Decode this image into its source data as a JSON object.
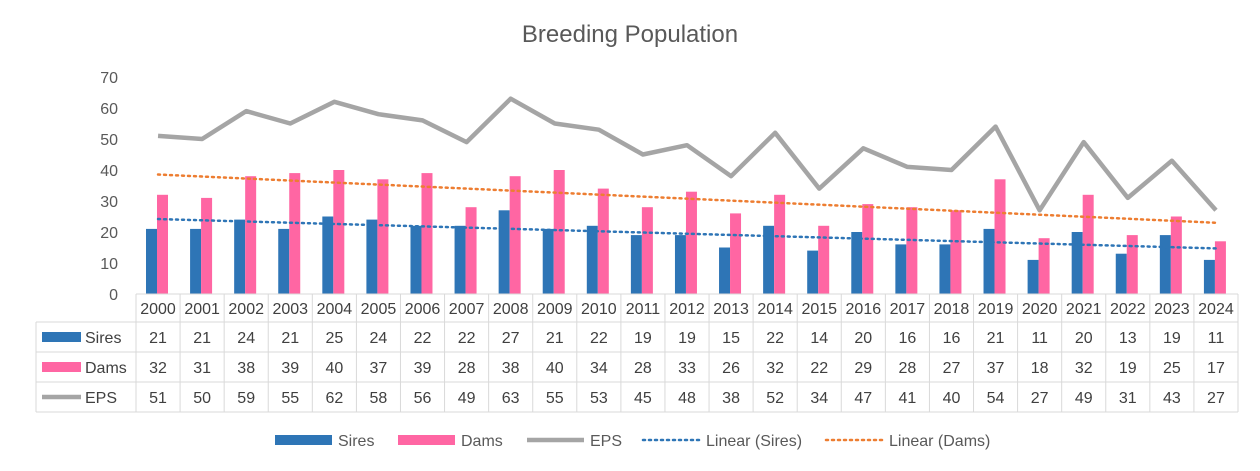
{
  "chart_data": {
    "type": "bar",
    "title": "Breeding Population",
    "categories": [
      "2000",
      "2001",
      "2002",
      "2003",
      "2004",
      "2005",
      "2006",
      "2007",
      "2008",
      "2009",
      "2010",
      "2011",
      "2012",
      "2013",
      "2014",
      "2015",
      "2016",
      "2017",
      "2018",
      "2019",
      "2020",
      "2021",
      "2022",
      "2023",
      "2024"
    ],
    "ylim": [
      0,
      70
    ],
    "yticks": [
      0,
      10,
      20,
      30,
      40,
      50,
      60,
      70
    ],
    "grid": false,
    "legend_position": "bottom",
    "series": [
      {
        "name": "Sires",
        "type": "bar",
        "color": "#2e75b6",
        "values": [
          21,
          21,
          24,
          21,
          25,
          24,
          22,
          22,
          27,
          21,
          22,
          19,
          19,
          15,
          22,
          14,
          20,
          16,
          16,
          21,
          11,
          20,
          13,
          19,
          11
        ]
      },
      {
        "name": "Dams",
        "type": "bar",
        "color": "#ff66a3",
        "values": [
          32,
          31,
          38,
          39,
          40,
          37,
          39,
          28,
          38,
          40,
          34,
          28,
          33,
          26,
          32,
          22,
          29,
          28,
          27,
          37,
          18,
          32,
          19,
          25,
          17
        ]
      },
      {
        "name": "EPS",
        "type": "line",
        "color": "#a5a5a5",
        "values": [
          51,
          50,
          59,
          55,
          62,
          58,
          56,
          49,
          63,
          55,
          53,
          45,
          48,
          38,
          52,
          34,
          47,
          41,
          40,
          54,
          27,
          49,
          31,
          43,
          27
        ]
      }
    ],
    "trendlines": [
      {
        "name": "Linear (Sires)",
        "of": "Sires",
        "color": "#2e75b6",
        "style": "dotted"
      },
      {
        "name": "Linear (Dams)",
        "of": "Dams",
        "color": "#ed7d31",
        "style": "dotted"
      }
    ]
  }
}
